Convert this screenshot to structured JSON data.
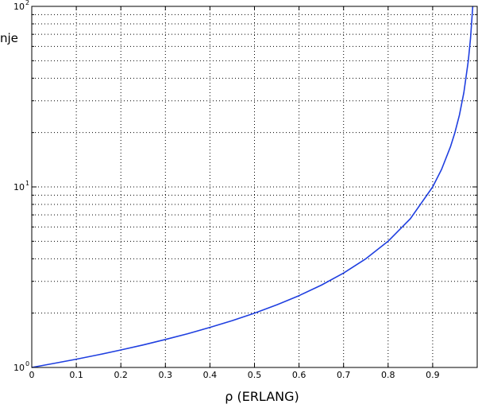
{
  "chart_data": {
    "type": "line",
    "title": "",
    "xlabel": "ρ (ERLANG)",
    "ylabel": "nje",
    "xscale": "linear",
    "yscale": "log",
    "xlim": [
      0,
      1
    ],
    "ylim": [
      1,
      100
    ],
    "grid": true,
    "x_ticks": [
      {
        "value": 0,
        "label": "0"
      },
      {
        "value": 0.1,
        "label": "0.1"
      },
      {
        "value": 0.2,
        "label": "0.2"
      },
      {
        "value": 0.3,
        "label": "0.3"
      },
      {
        "value": 0.4,
        "label": "0.4"
      },
      {
        "value": 0.5,
        "label": "0.5"
      },
      {
        "value": 0.6,
        "label": "0.6"
      },
      {
        "value": 0.7,
        "label": "0.7"
      },
      {
        "value": 0.8,
        "label": "0.8"
      },
      {
        "value": 0.9,
        "label": "0.9"
      }
    ],
    "y_ticks": [
      {
        "value": 1,
        "base": "10",
        "exp": "0"
      },
      {
        "value": 10,
        "base": "10",
        "exp": "1"
      },
      {
        "value": 100,
        "base": "10",
        "exp": "2"
      }
    ],
    "series": [
      {
        "color": "#1f3fe0",
        "x": [
          0,
          0.05,
          0.1,
          0.15,
          0.2,
          0.25,
          0.3,
          0.35,
          0.4,
          0.45,
          0.5,
          0.55,
          0.6,
          0.65,
          0.7,
          0.75,
          0.8,
          0.85,
          0.9,
          0.92,
          0.94,
          0.95,
          0.96,
          0.97,
          0.98,
          0.985,
          0.99
        ],
        "y": [
          1,
          1.053,
          1.111,
          1.176,
          1.25,
          1.333,
          1.429,
          1.538,
          1.667,
          1.818,
          2,
          2.222,
          2.5,
          2.857,
          3.333,
          4,
          5,
          6.667,
          10,
          12.5,
          16.67,
          20,
          25,
          33.33,
          50,
          66.67,
          100
        ]
      }
    ]
  }
}
